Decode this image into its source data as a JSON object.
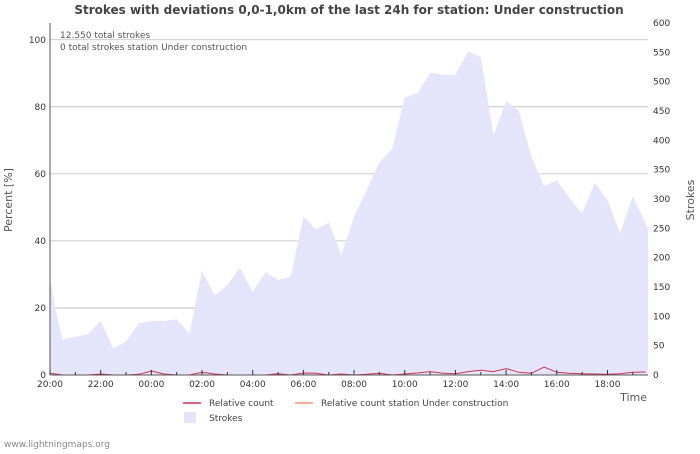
{
  "chart_data": {
    "type": "area",
    "title": "Strokes with deviations 0,0-1,0km of the last 24h for station: Under construction",
    "xlabel": "Time",
    "ylabel_left": "Percent   [%]",
    "ylabel_right": "Strokes",
    "ylim_left": [
      0,
      105
    ],
    "ylim_right": [
      0,
      600
    ],
    "yticks_left": [
      0,
      20,
      40,
      60,
      80,
      100
    ],
    "yticks_right": [
      0,
      50,
      100,
      150,
      200,
      250,
      300,
      350,
      400,
      450,
      500,
      550,
      600
    ],
    "x_range_hours": [
      0,
      23.6
    ],
    "x_tick_labels": [
      {
        "h": 0,
        "label": "20:00"
      },
      {
        "h": 2,
        "label": "22:00"
      },
      {
        "h": 4,
        "label": "00:00"
      },
      {
        "h": 6,
        "label": "02:00"
      },
      {
        "h": 8,
        "label": "04:00"
      },
      {
        "h": 10,
        "label": "06:00"
      },
      {
        "h": 12,
        "label": "08:00"
      },
      {
        "h": 14,
        "label": "10:00"
      },
      {
        "h": 16,
        "label": "12:00"
      },
      {
        "h": 18,
        "label": "14:00"
      },
      {
        "h": 20,
        "label": "16:00"
      },
      {
        "h": 22,
        "label": "18:00"
      }
    ],
    "annotations": [
      "12.550 total strokes",
      "0 total strokes station Under construction"
    ],
    "legend": [
      {
        "name": "Relative count",
        "color": "#cc3355",
        "kind": "line"
      },
      {
        "name": "Relative count station Under construction",
        "color": "#ee9977",
        "kind": "line"
      },
      {
        "name": "Strokes",
        "color": "#e4e4fa",
        "kind": "area"
      }
    ],
    "series": [
      {
        "name": "Strokes",
        "axis": "right",
        "x_hours": [
          0,
          0.25,
          0.5,
          1,
          1.5,
          2,
          2.5,
          3,
          3.5,
          4,
          4.5,
          5,
          5.5,
          6,
          6.5,
          7,
          7.5,
          8,
          8.5,
          9,
          9.5,
          10,
          10.5,
          11,
          11.5,
          12,
          12.5,
          13,
          13.5,
          14,
          14.5,
          15,
          15.5,
          16,
          16.5,
          17,
          17.5,
          18,
          18.5,
          19,
          19.5,
          20,
          20.5,
          21,
          21.5,
          22,
          22.5,
          23,
          23.5,
          23.6
        ],
        "values": [
          165,
          105,
          60,
          65,
          70,
          92,
          45,
          57,
          88,
          92,
          92,
          95,
          70,
          178,
          135,
          153,
          183,
          142,
          175,
          162,
          168,
          270,
          248,
          260,
          205,
          270,
          315,
          362,
          385,
          473,
          480,
          515,
          512,
          512,
          552,
          542,
          408,
          467,
          450,
          372,
          322,
          332,
          302,
          275,
          328,
          298,
          242,
          305,
          258,
          250
        ]
      },
      {
        "name": "Relative count",
        "axis": "left",
        "x_hours": [
          0,
          0.5,
          1,
          1.5,
          2,
          2.5,
          3,
          3.5,
          4,
          4.5,
          5,
          5.5,
          6,
          6.5,
          7,
          7.5,
          8,
          8.5,
          9,
          9.5,
          10,
          10.5,
          11,
          11.5,
          12,
          12.5,
          13,
          13.5,
          14,
          14.5,
          15,
          15.5,
          16,
          16.5,
          17,
          17.5,
          18,
          18.5,
          19,
          19.5,
          20,
          20.5,
          21,
          21.5,
          22,
          22.5,
          23,
          23.5
        ],
        "values": [
          0.5,
          0,
          0,
          0,
          0.3,
          0,
          0,
          0.2,
          1.2,
          0.3,
          0,
          0,
          0.8,
          0.3,
          0,
          0,
          0,
          0,
          0.4,
          0,
          0.6,
          0.5,
          0,
          0.3,
          0,
          0.2,
          0.5,
          0,
          0.3,
          0.6,
          1.0,
          0.5,
          0.4,
          1.0,
          1.4,
          1.0,
          1.9,
          0.8,
          0.5,
          2.4,
          0.8,
          0.5,
          0.4,
          0.3,
          0.2,
          0.4,
          0.8,
          0.9
        ]
      },
      {
        "name": "Relative count station Under construction",
        "axis": "left",
        "x_hours": [
          0,
          23.6
        ],
        "values": [
          0,
          0
        ]
      }
    ]
  },
  "footer": {
    "source": "www.lightningmaps.org"
  }
}
